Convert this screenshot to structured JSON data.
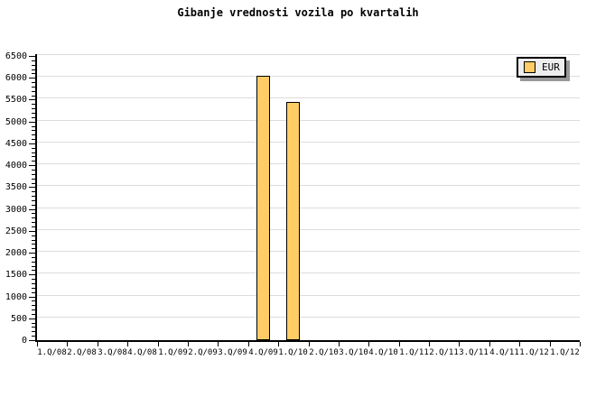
{
  "title": "Gibanje vrednosti vozila po kvartalih",
  "legend": {
    "items": [
      {
        "label": "EUR",
        "color": "#FFCC66"
      }
    ],
    "position": "top-right"
  },
  "colors": {
    "background": "#FFFFFF",
    "bar_fill": "#FFCC66",
    "bar_border": "#000000",
    "grid_line": "#DCDCDC",
    "axis": "#000000",
    "legend_background": "#EEEEEE",
    "legend_shadow": "#999999",
    "text": "#000000"
  },
  "chart_data": {
    "type": "bar",
    "title": "Gibanje vrednosti vozila po kvartalih",
    "categories": [
      "1.Q/08",
      "2.Q/08",
      "3.Q/08",
      "4.Q/08",
      "1.Q/09",
      "2.Q/09",
      "3.Q/09",
      "4.Q/09",
      "1.Q/10",
      "2.Q/10",
      "3.Q/10",
      "4.Q/10",
      "1.Q/11",
      "2.Q/11",
      "3.Q/11",
      "4.Q/11",
      "1.Q/12",
      "1.Q/12"
    ],
    "series": [
      {
        "name": "EUR",
        "color": "#FFCC66",
        "values": [
          null,
          null,
          null,
          null,
          null,
          null,
          null,
          6000,
          5400,
          null,
          null,
          null,
          null,
          null,
          null,
          null,
          null,
          null
        ]
      }
    ],
    "xlabel": "",
    "ylabel": "",
    "ylim": [
      0,
      6500
    ],
    "ytick_step": 500,
    "yminor_tick_step": 100,
    "grid": "horizontal-major",
    "legend_position": "top-right"
  }
}
